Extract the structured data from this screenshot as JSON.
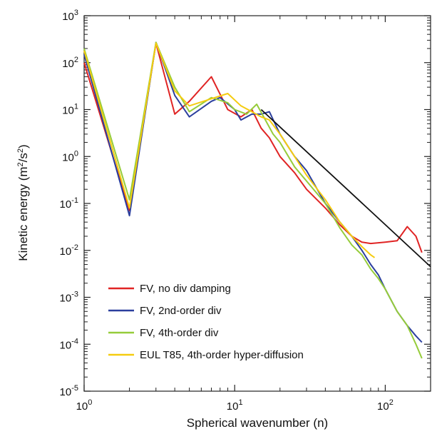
{
  "chart_data": {
    "type": "line",
    "title": "",
    "xlabel": "Spherical wavenumber (n)",
    "ylabel_main": "Kinetic energy (m",
    "ylabel_mid": "/s",
    "ylabel_end": ")",
    "ylabel_sup": "2",
    "xscale": "log",
    "yscale": "log",
    "xlim": [
      1,
      200
    ],
    "ylim": [
      1e-05,
      1000
    ],
    "grid": false,
    "legend_position": "bottom-left",
    "x_ticks": [
      {
        "value": 1,
        "base": "10",
        "exp": "0"
      },
      {
        "value": 10,
        "base": "10",
        "exp": "1"
      },
      {
        "value": 100,
        "base": "10",
        "exp": "2"
      }
    ],
    "y_ticks": [
      {
        "value": 1000,
        "base": "10",
        "exp": "3"
      },
      {
        "value": 100,
        "base": "10",
        "exp": "2"
      },
      {
        "value": 10,
        "base": "10",
        "exp": "1"
      },
      {
        "value": 1,
        "base": "10",
        "exp": "0"
      },
      {
        "value": 0.1,
        "base": "10",
        "exp": "-1"
      },
      {
        "value": 0.01,
        "base": "10",
        "exp": "-2"
      },
      {
        "value": 0.001,
        "base": "10",
        "exp": "-3"
      },
      {
        "value": 0.0001,
        "base": "10",
        "exp": "-4"
      },
      {
        "value": 1e-05,
        "base": "10",
        "exp": "-5"
      }
    ],
    "series": [
      {
        "name": "FV, no div damping",
        "color": "#e02424",
        "points": [
          [
            1,
            100
          ],
          [
            2,
            0.07
          ],
          [
            3,
            260
          ],
          [
            4,
            8
          ],
          [
            5,
            15
          ],
          [
            7,
            50
          ],
          [
            9,
            10
          ],
          [
            11,
            7
          ],
          [
            13,
            10
          ],
          [
            15,
            4
          ],
          [
            17,
            2.5
          ],
          [
            20,
            1
          ],
          [
            25,
            0.45
          ],
          [
            30,
            0.2
          ],
          [
            40,
            0.08
          ],
          [
            50,
            0.035
          ],
          [
            60,
            0.02
          ],
          [
            70,
            0.015
          ],
          [
            80,
            0.014
          ],
          [
            100,
            0.015
          ],
          [
            120,
            0.016
          ],
          [
            140,
            0.032
          ],
          [
            160,
            0.02
          ],
          [
            175,
            0.009
          ]
        ]
      },
      {
        "name": "FV, 2nd-order div",
        "color": "#2b3f9e",
        "points": [
          [
            1,
            150
          ],
          [
            2,
            0.055
          ],
          [
            3,
            270
          ],
          [
            4,
            20
          ],
          [
            5,
            7
          ],
          [
            7,
            15
          ],
          [
            8,
            18
          ],
          [
            10,
            10
          ],
          [
            11,
            6
          ],
          [
            13,
            8
          ],
          [
            15,
            8
          ],
          [
            17,
            9
          ],
          [
            20,
            3
          ],
          [
            25,
            1
          ],
          [
            30,
            0.5
          ],
          [
            40,
            0.1
          ],
          [
            50,
            0.04
          ],
          [
            60,
            0.02
          ],
          [
            70,
            0.01
          ],
          [
            80,
            0.005
          ],
          [
            90,
            0.003
          ],
          [
            100,
            0.0015
          ],
          [
            120,
            0.0005
          ],
          [
            140,
            0.00025
          ],
          [
            160,
            0.00015
          ],
          [
            175,
            0.00011
          ]
        ]
      },
      {
        "name": "FV, 4th-order div",
        "color": "#96cc3a",
        "points": [
          [
            1,
            200
          ],
          [
            2,
            0.12
          ],
          [
            3,
            270
          ],
          [
            4,
            30
          ],
          [
            5,
            9
          ],
          [
            7,
            18
          ],
          [
            9,
            14
          ],
          [
            10,
            10
          ],
          [
            12,
            8
          ],
          [
            14,
            13
          ],
          [
            16,
            6
          ],
          [
            18,
            3
          ],
          [
            20,
            2
          ],
          [
            25,
            0.6
          ],
          [
            30,
            0.3
          ],
          [
            40,
            0.1
          ],
          [
            50,
            0.03
          ],
          [
            60,
            0.013
          ],
          [
            70,
            0.008
          ],
          [
            80,
            0.004
          ],
          [
            90,
            0.0025
          ],
          [
            100,
            0.0015
          ],
          [
            120,
            0.0005
          ],
          [
            140,
            0.00025
          ],
          [
            160,
            0.0001
          ],
          [
            175,
            5e-05
          ]
        ]
      },
      {
        "name": "EUL T85, 4th-order hyper-diffusion",
        "color": "#f5cc10",
        "points": [
          [
            1,
            180
          ],
          [
            2,
            0.08
          ],
          [
            3,
            260
          ],
          [
            4,
            25
          ],
          [
            5,
            12
          ],
          [
            7,
            17
          ],
          [
            9,
            22
          ],
          [
            11,
            12
          ],
          [
            13,
            9
          ],
          [
            15,
            7
          ],
          [
            17,
            6
          ],
          [
            20,
            3
          ],
          [
            25,
            1
          ],
          [
            30,
            0.4
          ],
          [
            40,
            0.12
          ],
          [
            50,
            0.04
          ],
          [
            60,
            0.02
          ],
          [
            70,
            0.012
          ],
          [
            80,
            0.008
          ],
          [
            85,
            0.007
          ]
        ]
      },
      {
        "name": "",
        "color": "#111111",
        "points": [
          [
            15,
            10
          ],
          [
            200,
            0.0045
          ]
        ]
      }
    ]
  }
}
